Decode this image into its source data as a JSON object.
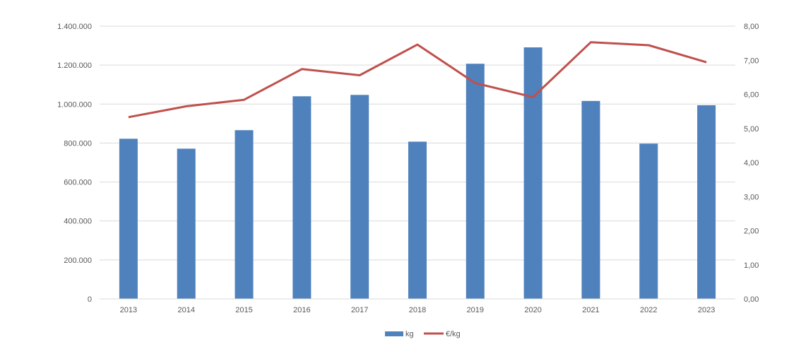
{
  "chart_data": {
    "type": "bar",
    "categories": [
      "2013",
      "2014",
      "2015",
      "2016",
      "2017",
      "2018",
      "2019",
      "2020",
      "2021",
      "2022",
      "2023"
    ],
    "series": [
      {
        "name": "kg",
        "type": "bar",
        "axis": "left",
        "color": "#4F81BD",
        "values": [
          822000,
          771000,
          866000,
          1040000,
          1047000,
          807000,
          1207000,
          1291000,
          1016000,
          797000,
          994000
        ]
      },
      {
        "name": "€/kg",
        "type": "line",
        "axis": "right",
        "color": "#C0504D",
        "values": [
          5.33,
          5.65,
          5.84,
          6.74,
          6.56,
          7.46,
          6.33,
          5.92,
          7.53,
          7.44,
          6.94
        ]
      }
    ],
    "ylim_left": [
      0,
      1400000
    ],
    "ylim_right": [
      0,
      8
    ],
    "yticks_left": [
      "0",
      "200.000",
      "400.000",
      "600.000",
      "800.000",
      "1.000.000",
      "1.200.000",
      "1.400.000"
    ],
    "yticks_right": [
      "0,00",
      "1,00",
      "2,00",
      "3,00",
      "4,00",
      "5,00",
      "6,00",
      "7,00",
      "8,00"
    ],
    "grid": true,
    "legend_position": "bottom"
  }
}
